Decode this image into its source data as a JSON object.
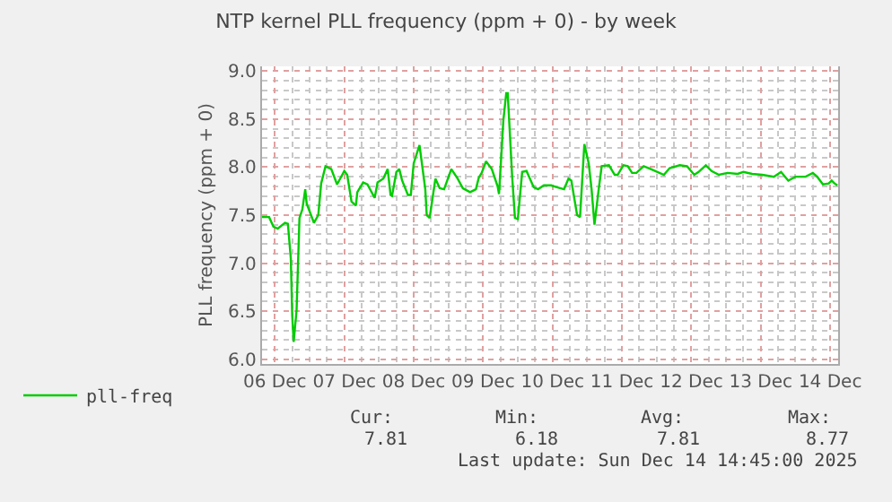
{
  "chart_data": {
    "type": "line",
    "title": "NTP kernel PLL frequency (ppm + 0) - by week",
    "ylabel": "PLL frequency (ppm + 0)",
    "x": [
      "2025-12-06T07:30",
      "2025-12-06T10:00",
      "2025-12-06T11:30",
      "2025-12-06T13:00",
      "2025-12-06T15:30",
      "2025-12-06T16:30",
      "2025-12-06T17:30",
      "2025-12-06T18:00",
      "2025-12-06T18:30",
      "2025-12-06T19:30",
      "2025-12-06T20:30",
      "2025-12-06T21:30",
      "2025-12-06T22:30",
      "2025-12-06T23:00",
      "2025-12-07T00:30",
      "2025-12-07T01:30",
      "2025-12-07T03:00",
      "2025-12-07T04:00",
      "2025-12-07T05:30",
      "2025-12-07T07:30",
      "2025-12-07T09:30",
      "2025-12-07T12:00",
      "2025-12-07T13:00",
      "2025-12-07T14:30",
      "2025-12-07T16:00",
      "2025-12-07T16:30",
      "2025-12-07T18:30",
      "2025-12-07T20:00",
      "2025-12-07T22:30",
      "2025-12-07T23:30",
      "2025-12-08T01:30",
      "2025-12-08T03:00",
      "2025-12-08T04:00",
      "2025-12-08T04:30",
      "2025-12-08T06:00",
      "2025-12-08T07:00",
      "2025-12-08T08:00",
      "2025-12-08T10:00",
      "2025-12-08T11:00",
      "2025-12-08T12:00",
      "2025-12-08T14:00",
      "2025-12-08T16:00",
      "2025-12-08T16:30",
      "2025-12-08T17:30",
      "2025-12-08T19:30",
      "2025-12-08T21:00",
      "2025-12-08T22:30",
      "2025-12-09T01:00",
      "2025-12-09T03:00",
      "2025-12-09T05:00",
      "2025-12-09T07:30",
      "2025-12-09T09:30",
      "2025-12-09T10:30",
      "2025-12-09T11:30",
      "2025-12-09T13:00",
      "2025-12-09T15:00",
      "2025-12-09T17:00",
      "2025-12-09T17:30",
      "2025-12-09T19:00",
      "2025-12-09T20:00",
      "2025-12-09T20:30",
      "2025-12-09T22:00",
      "2025-12-09T23:00",
      "2025-12-10T00:00",
      "2025-12-10T01:30",
      "2025-12-10T03:00",
      "2025-12-10T05:30",
      "2025-12-10T07:00",
      "2025-12-10T09:00",
      "2025-12-10T11:30",
      "2025-12-10T13:30",
      "2025-12-10T16:00",
      "2025-12-10T17:30",
      "2025-12-10T18:30",
      "2025-12-10T20:30",
      "2025-12-10T21:30",
      "2025-12-10T23:00",
      "2025-12-11T00:30",
      "2025-12-11T01:30",
      "2025-12-11T02:30",
      "2025-12-11T04:00",
      "2025-12-11T05:00",
      "2025-12-11T07:30",
      "2025-12-11T09:30",
      "2025-12-11T10:30",
      "2025-12-11T12:30",
      "2025-12-11T14:00",
      "2025-12-11T15:30",
      "2025-12-11T17:00",
      "2025-12-11T19:30",
      "2025-12-11T22:00",
      "2025-12-12T02:30",
      "2025-12-12T04:30",
      "2025-12-12T08:00",
      "2025-12-12T10:30",
      "2025-12-12T13:00",
      "2025-12-12T14:30",
      "2025-12-12T17:00",
      "2025-12-12T19:00",
      "2025-12-12T21:30",
      "2025-12-13T00:30",
      "2025-12-13T04:00",
      "2025-12-13T06:00",
      "2025-12-13T09:00",
      "2025-12-13T12:30",
      "2025-12-13T16:30",
      "2025-12-13T19:00",
      "2025-12-13T21:30",
      "2025-12-14T00:00",
      "2025-12-14T03:30",
      "2025-12-14T06:00",
      "2025-12-14T07:30",
      "2025-12-14T09:30",
      "2025-12-14T11:30",
      "2025-12-14T12:30",
      "2025-12-14T13:30",
      "2025-12-14T14:30"
    ],
    "series": [
      {
        "name": "pll-freq",
        "color": "#00cc00",
        "values": [
          7.48,
          7.48,
          7.38,
          7.36,
          7.42,
          7.41,
          7.05,
          6.45,
          6.18,
          6.51,
          7.47,
          7.56,
          7.77,
          7.62,
          7.5,
          7.42,
          7.5,
          7.83,
          8.01,
          7.98,
          7.82,
          7.96,
          7.92,
          7.64,
          7.6,
          7.74,
          7.84,
          7.82,
          7.68,
          7.84,
          7.88,
          7.98,
          7.71,
          7.7,
          7.95,
          7.98,
          7.86,
          7.71,
          7.71,
          8.04,
          8.23,
          7.77,
          7.5,
          7.47,
          7.88,
          7.78,
          7.77,
          7.98,
          7.89,
          7.78,
          7.74,
          7.77,
          7.89,
          7.94,
          8.06,
          7.98,
          7.8,
          7.72,
          8.49,
          8.77,
          8.77,
          7.92,
          7.47,
          7.46,
          7.95,
          7.96,
          7.79,
          7.77,
          7.81,
          7.81,
          7.79,
          7.77,
          7.88,
          7.86,
          7.5,
          7.48,
          8.24,
          8.04,
          7.77,
          7.4,
          7.78,
          8.01,
          8.02,
          7.92,
          7.92,
          8.02,
          8.01,
          7.94,
          7.94,
          8.01,
          7.98,
          7.92,
          7.99,
          8.02,
          8.01,
          7.92,
          7.95,
          8.02,
          7.96,
          7.92,
          7.94,
          7.93,
          7.95,
          7.93,
          7.92,
          7.9,
          7.95,
          7.86,
          7.9,
          7.9,
          7.94,
          7.9,
          7.82,
          7.83,
          7.86,
          7.83,
          7.81
        ]
      }
    ],
    "xlim": [
      "2025-12-06T07:30",
      "2025-12-14T14:45"
    ],
    "xticks": [
      {
        "value": "2025-12-06T12:00",
        "label": "06 Dec"
      },
      {
        "value": "2025-12-07T12:00",
        "label": "07 Dec"
      },
      {
        "value": "2025-12-08T12:00",
        "label": "08 Dec"
      },
      {
        "value": "2025-12-09T12:00",
        "label": "09 Dec"
      },
      {
        "value": "2025-12-10T12:00",
        "label": "10 Dec"
      },
      {
        "value": "2025-12-11T12:00",
        "label": "11 Dec"
      },
      {
        "value": "2025-12-12T12:00",
        "label": "12 Dec"
      },
      {
        "value": "2025-12-13T12:00",
        "label": "13 Dec"
      },
      {
        "value": "2025-12-14T12:00",
        "label": "14 Dec"
      }
    ],
    "ylim": [
      5.95,
      9.05
    ],
    "yticks": [
      {
        "value": 6,
        "label": "6.0"
      },
      {
        "value": 6.5,
        "label": "6.5"
      },
      {
        "value": 7,
        "label": "7.0"
      },
      {
        "value": 7.5,
        "label": "7.5"
      },
      {
        "value": 8,
        "label": "8.0"
      },
      {
        "value": 8.5,
        "label": "8.5"
      },
      {
        "value": 9,
        "label": "9.0"
      }
    ],
    "grid": true,
    "legend": "bottom left",
    "marker": "none",
    "line_style": "solid",
    "annotations": [
      "Cur:",
      "Min:",
      "Avg:",
      "Max:",
      "7.81",
      "6.18",
      "7.81",
      "8.77",
      "Last update: Sun Dec 14 14:45:00 2025"
    ]
  }
}
